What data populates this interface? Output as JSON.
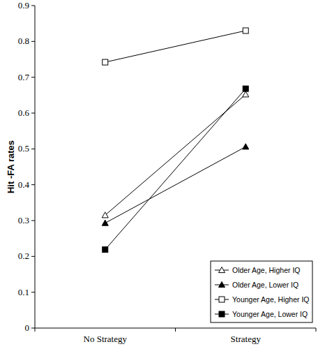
{
  "chart_data": {
    "type": "line",
    "ylabel": "Hit -FA rates",
    "categories": [
      "No Strategy",
      "Strategy"
    ],
    "series": [
      {
        "name": "Older Age, Higher IQ",
        "color": "#000000",
        "marker": "triangle-open",
        "values": [
          0.315,
          0.652
        ]
      },
      {
        "name": "Older Age, Lower IQ",
        "color": "#000000",
        "marker": "triangle",
        "values": [
          0.293,
          0.506
        ]
      },
      {
        "name": "Younger Age, Higher IQ",
        "color": "#000000",
        "marker": "square-open",
        "values": [
          0.742,
          0.83
        ]
      },
      {
        "name": "Younger Age, Lower IQ",
        "color": "#000000",
        "marker": "square",
        "values": [
          0.219,
          0.668
        ]
      }
    ],
    "ylim": [
      0,
      0.9
    ],
    "yticks": [
      0,
      0.1,
      0.2,
      0.3,
      0.4,
      0.5,
      0.6,
      0.7,
      0.8,
      0.9
    ],
    "grid": false,
    "legend": "lower right"
  }
}
